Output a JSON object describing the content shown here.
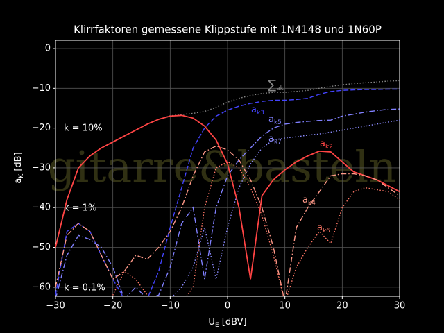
{
  "chart_data": {
    "type": "line",
    "title": "Klirrfaktoren gemessene Klippstufe mit 1N4148 und 1N60P",
    "watermark": "gitarre&basteln",
    "xlabel": "UE [dBV]",
    "ylabel": "aK [dB]",
    "x": [
      -30,
      -28,
      -26,
      -24,
      -22,
      -20,
      -18,
      -16,
      -14,
      -12,
      -10,
      -8,
      -6,
      -4,
      -2,
      0,
      2,
      4,
      6,
      8,
      10,
      12,
      14,
      16,
      18,
      20,
      22,
      24,
      26,
      28,
      30
    ],
    "xlim": [
      -30,
      30
    ],
    "xticks": [
      {
        "value": -30,
        "label": "−30"
      },
      {
        "value": -20,
        "label": "−20"
      },
      {
        "value": -10,
        "label": "−10"
      },
      0,
      10,
      20,
      30
    ],
    "ylim": [
      -62.3,
      2.1
    ],
    "yticks": [
      {
        "value": -60,
        "label": "−60"
      },
      {
        "value": -50,
        "label": "−50"
      },
      {
        "value": -40,
        "label": "−40"
      },
      {
        "value": -30,
        "label": "−30"
      },
      {
        "value": -20,
        "label": "−20"
      },
      {
        "value": -10,
        "label": "−10"
      },
      0
    ],
    "grid": true,
    "annotations": [
      "k = 10%",
      "k = 1%",
      "k = 0,1%"
    ],
    "series": [
      {
        "name": "∑ak",
        "color": "#888888",
        "style": "dotted",
        "values": [
          -50,
          -38,
          -30,
          -27,
          -25,
          -23.5,
          -22,
          -20.5,
          -19,
          -17.8,
          -16.9,
          -16.6,
          -16.3,
          -15.8,
          -14.8,
          -13.5,
          -12.5,
          -11.8,
          -11.3,
          -11,
          -11,
          -10.8,
          -10.5,
          -10,
          -9.5,
          -9.1,
          -8.8,
          -8.6,
          -8.4,
          -8.2,
          -8.1
        ]
      },
      {
        "name": "ak3",
        "color": "#4444ff",
        "style": "dashed",
        "values": [
          -62,
          -46,
          -44,
          -46,
          -52,
          -58,
          -63,
          -63,
          -63,
          -56,
          -45,
          -35,
          -25,
          -20,
          -17,
          -15.5,
          -14.5,
          -13.8,
          -13.3,
          -13,
          -13,
          -12.8,
          -12.5,
          -11.5,
          -10.8,
          -10.5,
          -10.4,
          -10.3,
          -10.3,
          -10.2,
          -10.2
        ]
      },
      {
        "name": "ak5",
        "color": "#8080ff",
        "style": "dashdot",
        "values": [
          -63,
          -52,
          -47,
          -48,
          -50,
          -55,
          -63,
          -60,
          -63,
          -62,
          -55,
          -44,
          -40,
          -58,
          -40,
          -32,
          -28,
          -25,
          -22,
          -20,
          -19,
          -18.6,
          -18.3,
          -18.1,
          -18,
          -17,
          -16.5,
          -16,
          -15.6,
          -15.3,
          -15.2
        ]
      },
      {
        "name": "ak7",
        "color": "#8c8cff",
        "style": "dotted",
        "values": [
          -63,
          -63,
          -63,
          -63,
          -63,
          -63,
          -63,
          -63,
          -63,
          -63,
          -63,
          -60,
          -55,
          -45,
          -58,
          -45,
          -35,
          -29,
          -25,
          -23,
          -22.5,
          -22.2,
          -21.8,
          -21.5,
          -21,
          -20.5,
          -20,
          -19.5,
          -19,
          -18.5,
          -18
        ]
      },
      {
        "name": "ak2",
        "color": "#ff4444",
        "style": "solid",
        "values": [
          -50,
          -38,
          -30,
          -27,
          -25,
          -23.5,
          -22,
          -20.5,
          -19,
          -17.8,
          -17,
          -16.8,
          -17.5,
          -19.5,
          -23,
          -29,
          -40,
          -58,
          -37,
          -33,
          -30.5,
          -28.5,
          -27,
          -25.8,
          -26,
          -28.5,
          -31,
          -32,
          -33,
          -34.5,
          -36
        ]
      },
      {
        "name": "ak4",
        "color": "#ff9988",
        "style": "dashdot",
        "values": [
          -60,
          -47,
          -44,
          -46,
          -52,
          -58,
          -56,
          -52,
          -53,
          -50,
          -46,
          -40,
          -32,
          -26,
          -24.5,
          -25.5,
          -28,
          -33,
          -40,
          -50,
          -64,
          -45,
          -40,
          -36,
          -32,
          -31.5,
          -31.5,
          -32,
          -33,
          -35,
          -37
        ]
      },
      {
        "name": "ak6",
        "color": "#ff7766",
        "style": "dotted",
        "values": [
          -64,
          -64,
          -63,
          -64,
          -64,
          -62,
          -56,
          -58,
          -62,
          -64,
          -64,
          -64,
          -60,
          -40,
          -30,
          -28.5,
          -30,
          -35,
          -42,
          -52,
          -64,
          -55,
          -50,
          -46,
          -49,
          -40,
          -36,
          -35,
          -35.5,
          -36,
          -38
        ]
      }
    ]
  }
}
